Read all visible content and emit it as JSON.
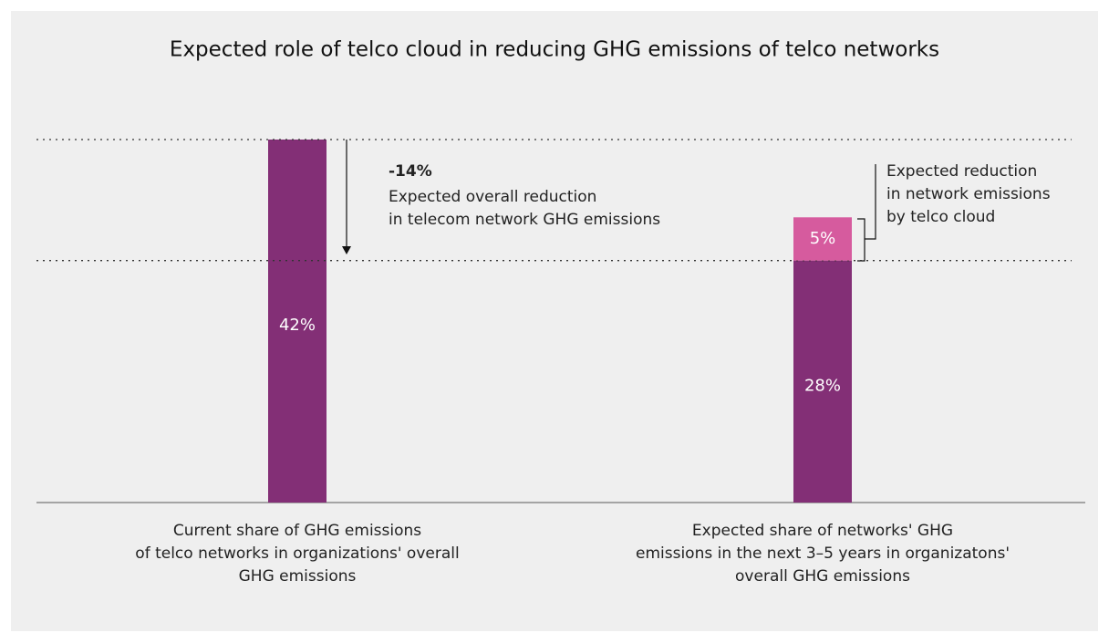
{
  "chart_data": {
    "type": "stacked_bar",
    "title": "Expected role of telco cloud in reducing GHG emissions of telco networks",
    "categories": [
      "Current share of GHG emissions\nof telco networks in organizations' overall\nGHG emissions",
      "Expected share of networks' GHG\nemissions in the next 3–5 years in organizatons'\noverall GHG emissions"
    ],
    "series": [
      {
        "color": "#832f76",
        "values": [
          42,
          28
        ],
        "value_labels": [
          "42%",
          "28%"
        ]
      },
      {
        "color": "#d65b9e",
        "values": [
          null,
          5
        ],
        "value_labels": [
          null,
          "5%"
        ]
      }
    ],
    "ylim": [
      0,
      42
    ],
    "annotations": [
      {
        "label": "-14%",
        "text": "Expected overall reduction\nin telecom network GHG emissions"
      },
      {
        "text": "Expected reduction\nin network emissions\nby telco cloud"
      }
    ]
  }
}
